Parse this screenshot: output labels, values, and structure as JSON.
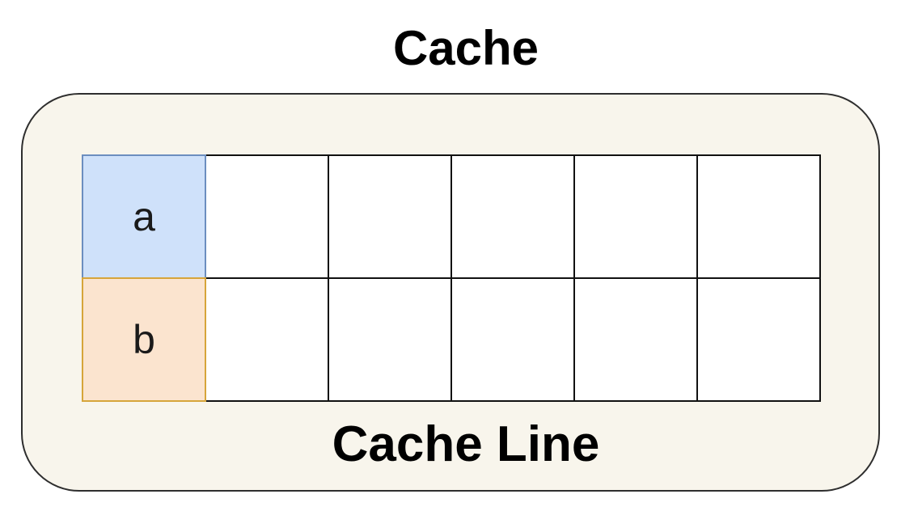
{
  "diagram": {
    "title": "Cache",
    "caption": "Cache Line",
    "columns": 6,
    "rows": [
      {
        "label": "a",
        "fill": "#cfe1fa",
        "stroke": "#6c8ebf"
      },
      {
        "label": "b",
        "fill": "#fbe4cf",
        "stroke": "#d6a53a"
      }
    ],
    "colors": {
      "cache_fill": "#f8f5ec",
      "cell_fill": "#ffffff",
      "line": "#111111"
    }
  }
}
